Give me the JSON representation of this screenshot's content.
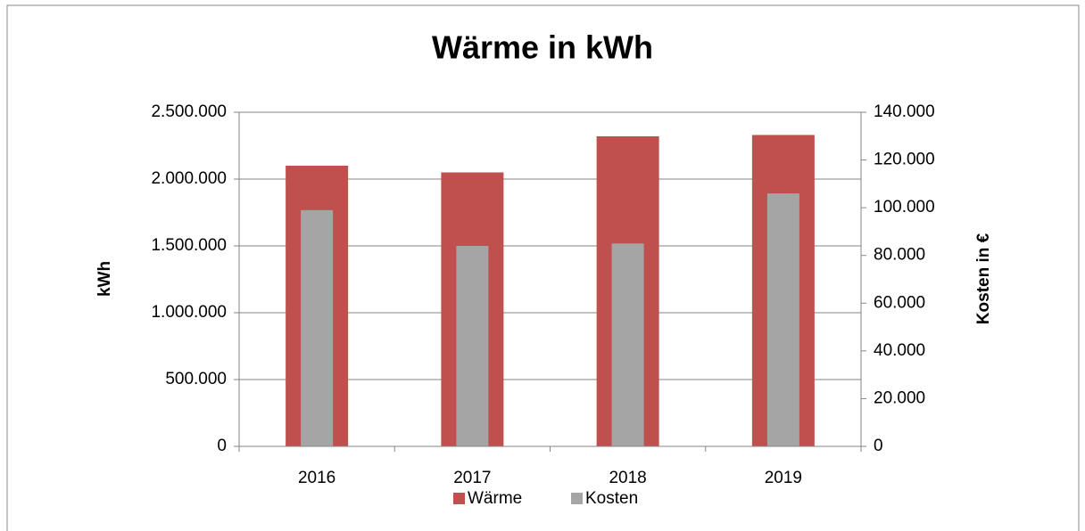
{
  "chart_data": {
    "type": "bar",
    "title": "Wärme in kWh",
    "ylabel": "kWh",
    "y2label": "Kosten in €",
    "categories": [
      "2016",
      "2017",
      "2018",
      "2019"
    ],
    "series": [
      {
        "name": "Wärme",
        "color": "#c0504d",
        "values": [
          2100000,
          2050000,
          2320000,
          2330000
        ]
      },
      {
        "name": "Kosten",
        "color": "#a5a5a5",
        "axis": "y2",
        "values": [
          99000,
          84000,
          85000,
          106000
        ]
      }
    ],
    "ylim": [
      0,
      2500000
    ],
    "yticks": [
      0,
      {
        "value": 500000,
        "label": "500.000"
      },
      {
        "value": 1000000,
        "label": "1.000.000"
      },
      {
        "value": 1500000,
        "label": "1.500.000"
      },
      {
        "value": 2000000,
        "label": "2.000.000"
      },
      {
        "value": 2500000,
        "label": "2.500.000"
      }
    ],
    "y2lim": [
      0,
      140000
    ],
    "y2ticks": [
      0,
      {
        "value": 20000,
        "label": "20.000"
      },
      {
        "value": 40000,
        "label": "40.000"
      },
      {
        "value": 60000,
        "label": "60.000"
      },
      {
        "value": 80000,
        "label": "80.000"
      },
      {
        "value": 100000,
        "label": "100.000"
      },
      {
        "value": 120000,
        "label": "120.000"
      },
      {
        "value": 140000,
        "label": "140.000"
      }
    ],
    "grid": true,
    "legend": "bottom"
  }
}
